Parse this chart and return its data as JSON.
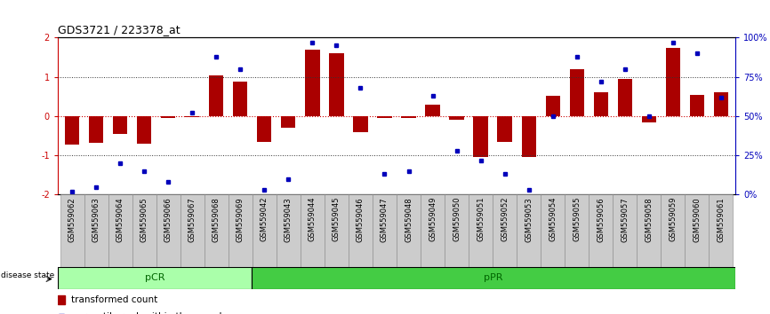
{
  "title": "GDS3721 / 223378_at",
  "samples": [
    "GSM559062",
    "GSM559063",
    "GSM559064",
    "GSM559065",
    "GSM559066",
    "GSM559067",
    "GSM559068",
    "GSM559069",
    "GSM559042",
    "GSM559043",
    "GSM559044",
    "GSM559045",
    "GSM559046",
    "GSM559047",
    "GSM559048",
    "GSM559049",
    "GSM559050",
    "GSM559051",
    "GSM559052",
    "GSM559053",
    "GSM559054",
    "GSM559055",
    "GSM559056",
    "GSM559057",
    "GSM559058",
    "GSM559059",
    "GSM559060",
    "GSM559061"
  ],
  "bar_values": [
    -0.72,
    -0.68,
    -0.45,
    -0.7,
    -0.05,
    -0.02,
    1.05,
    0.88,
    -0.65,
    -0.3,
    1.7,
    1.6,
    -0.4,
    -0.05,
    -0.05,
    0.3,
    -0.1,
    -1.05,
    -0.65,
    -1.05,
    0.52,
    1.2,
    0.6,
    0.95,
    -0.15,
    1.75,
    0.55,
    0.6
  ],
  "dot_values": [
    2,
    5,
    20,
    15,
    8,
    52,
    88,
    80,
    3,
    10,
    97,
    95,
    68,
    13,
    15,
    63,
    28,
    22,
    13,
    3,
    50,
    88,
    72,
    80,
    50,
    97,
    90,
    62
  ],
  "pCR_count": 8,
  "pPR_count": 20,
  "ylim": [
    -2,
    2
  ],
  "yticks": [
    -2,
    -1,
    0,
    1,
    2
  ],
  "yticklabels": [
    "-2",
    "-1",
    "0",
    "1",
    "2"
  ],
  "right_yticks": [
    0,
    25,
    50,
    75,
    100
  ],
  "right_yticklabels": [
    "0%",
    "25%",
    "50%",
    "75%",
    "100%"
  ],
  "bar_color": "#AA0000",
  "dot_color": "#0000BB",
  "zero_line_color": "#CC0000",
  "dotted_line_color": "#333333",
  "pCR_color": "#AAFFAA",
  "pPR_color": "#44CC44",
  "pCR_label_color": "#006600",
  "pPR_label_color": "#006600",
  "left_tick_color": "#CC0000",
  "right_tick_color": "#0000BB",
  "tick_label_size": 6,
  "group_label_size": 8,
  "title_fontsize": 9,
  "legend_fontsize": 7.5
}
